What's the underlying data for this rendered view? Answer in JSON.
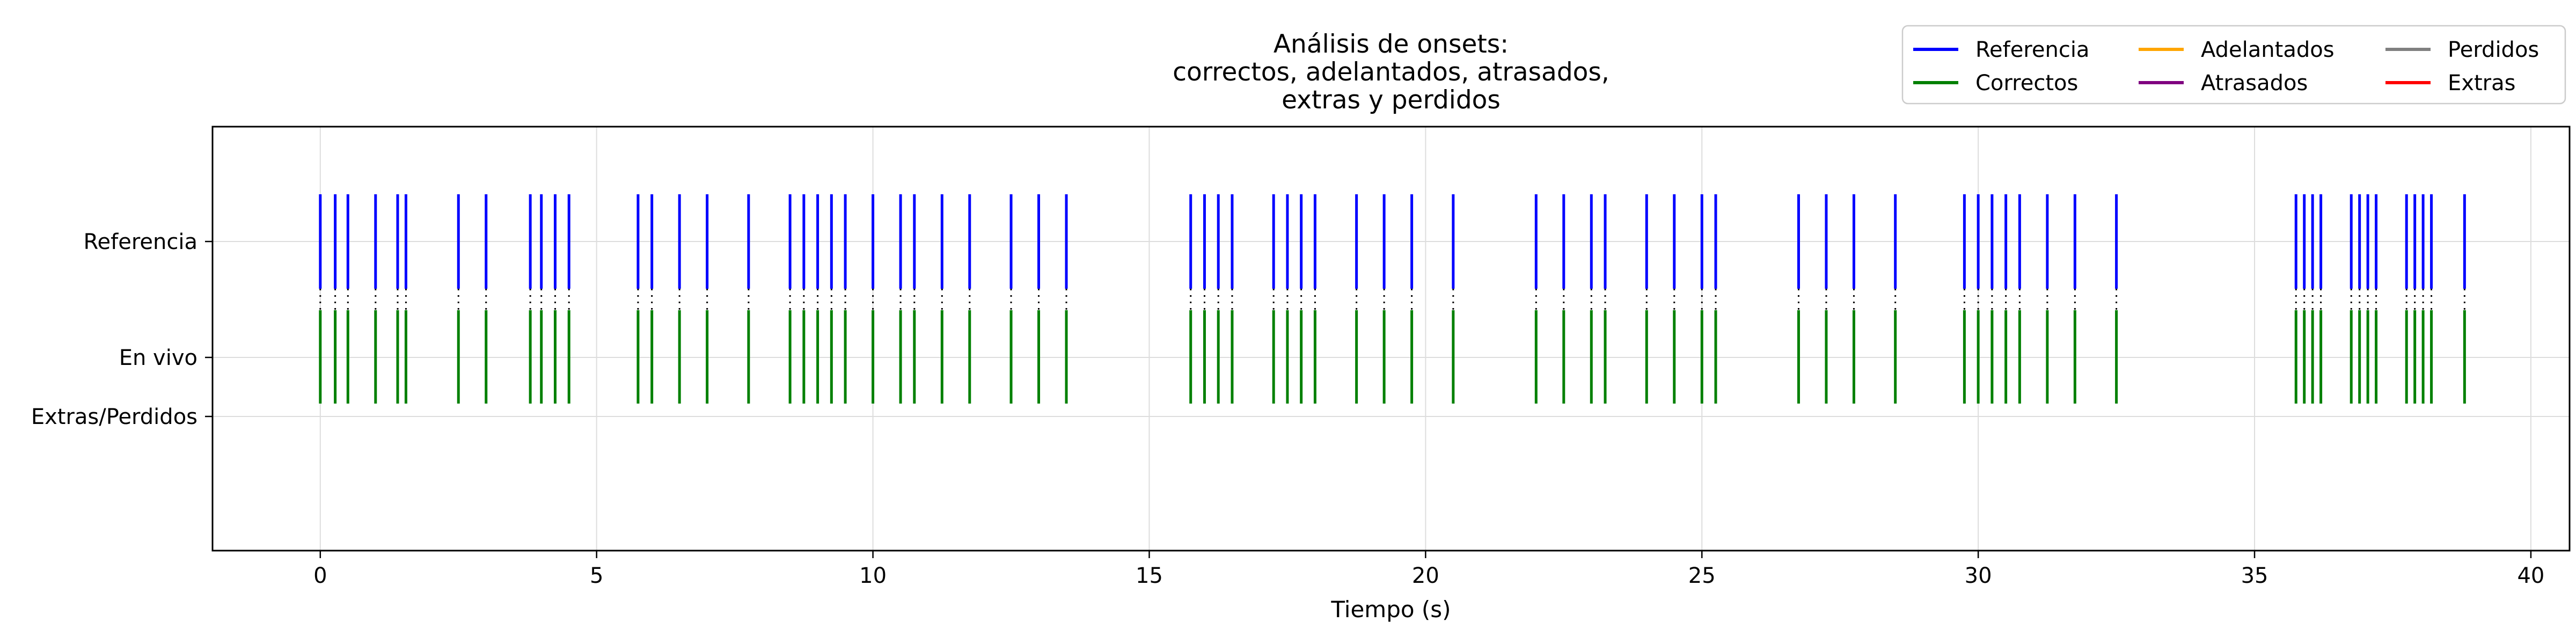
{
  "chart_data": {
    "type": "event-raster",
    "title": "Análisis de onsets:\ncorrectos, adelantados, atrasados,\nextras y perdidos",
    "xlabel": "Tiempo (s)",
    "ylabel": "",
    "xlim": [
      -1.95,
      40.7
    ],
    "xticks": [
      0,
      5,
      10,
      15,
      20,
      25,
      30,
      35,
      40
    ],
    "xtick_labels": [
      "0",
      "5",
      "10",
      "15",
      "20",
      "25",
      "30",
      "35",
      "40"
    ],
    "rows": [
      "Referencia",
      "En vivo",
      "Extras/Perdidos"
    ],
    "grid": true,
    "legend": {
      "placement": "top-right",
      "columns": 3,
      "entries": [
        {
          "label": "Referencia",
          "color": "#0000ff"
        },
        {
          "label": "Correctos",
          "color": "#008000"
        },
        {
          "label": "Adelantados",
          "color": "#ffa500"
        },
        {
          "label": "Atrasados",
          "color": "#800080"
        },
        {
          "label": "Perdidos",
          "color": "#808080"
        },
        {
          "label": "Extras",
          "color": "#ff0000"
        }
      ]
    },
    "series": [
      {
        "name": "Referencia",
        "row": "Referencia",
        "color": "#0000ff",
        "x": [
          0.0,
          0.27,
          0.5,
          1.0,
          1.4,
          1.55,
          2.5,
          3.0,
          3.8,
          4.0,
          4.25,
          4.5,
          5.75,
          6.0,
          6.5,
          7.0,
          7.75,
          8.5,
          8.75,
          9.0,
          9.25,
          9.5,
          10.0,
          10.5,
          10.75,
          11.25,
          11.75,
          12.5,
          13.0,
          13.5,
          15.75,
          16.0,
          16.25,
          16.5,
          17.25,
          17.5,
          17.75,
          18.0,
          18.75,
          19.25,
          19.75,
          20.5,
          22.0,
          22.5,
          23.0,
          23.25,
          24.0,
          24.5,
          25.0,
          25.25,
          26.75,
          27.25,
          27.75,
          28.5,
          29.75,
          30.0,
          30.25,
          30.5,
          30.75,
          31.25,
          31.75,
          32.5,
          35.75,
          35.9,
          36.05,
          36.2,
          36.75,
          36.9,
          37.05,
          37.2,
          37.75,
          37.9,
          38.05,
          38.2,
          38.8
        ]
      },
      {
        "name": "Correctos",
        "row": "En vivo",
        "color": "#008000",
        "x": [
          0.0,
          0.27,
          0.5,
          1.0,
          1.4,
          1.55,
          2.5,
          3.0,
          3.8,
          4.0,
          4.25,
          4.5,
          5.75,
          6.0,
          6.5,
          7.0,
          7.75,
          8.5,
          8.75,
          9.0,
          9.25,
          9.5,
          10.0,
          10.5,
          10.75,
          11.25,
          11.75,
          12.5,
          13.0,
          13.5,
          15.75,
          16.0,
          16.25,
          16.5,
          17.25,
          17.5,
          17.75,
          18.0,
          18.75,
          19.25,
          19.75,
          20.5,
          22.0,
          22.5,
          23.0,
          23.25,
          24.0,
          24.5,
          25.0,
          25.25,
          26.75,
          27.25,
          27.75,
          28.5,
          29.75,
          30.0,
          30.25,
          30.5,
          30.75,
          31.25,
          31.75,
          32.5,
          35.75,
          35.9,
          36.05,
          36.2,
          36.75,
          36.9,
          37.05,
          37.2,
          37.75,
          37.9,
          38.05,
          38.2,
          38.8
        ]
      }
    ]
  }
}
